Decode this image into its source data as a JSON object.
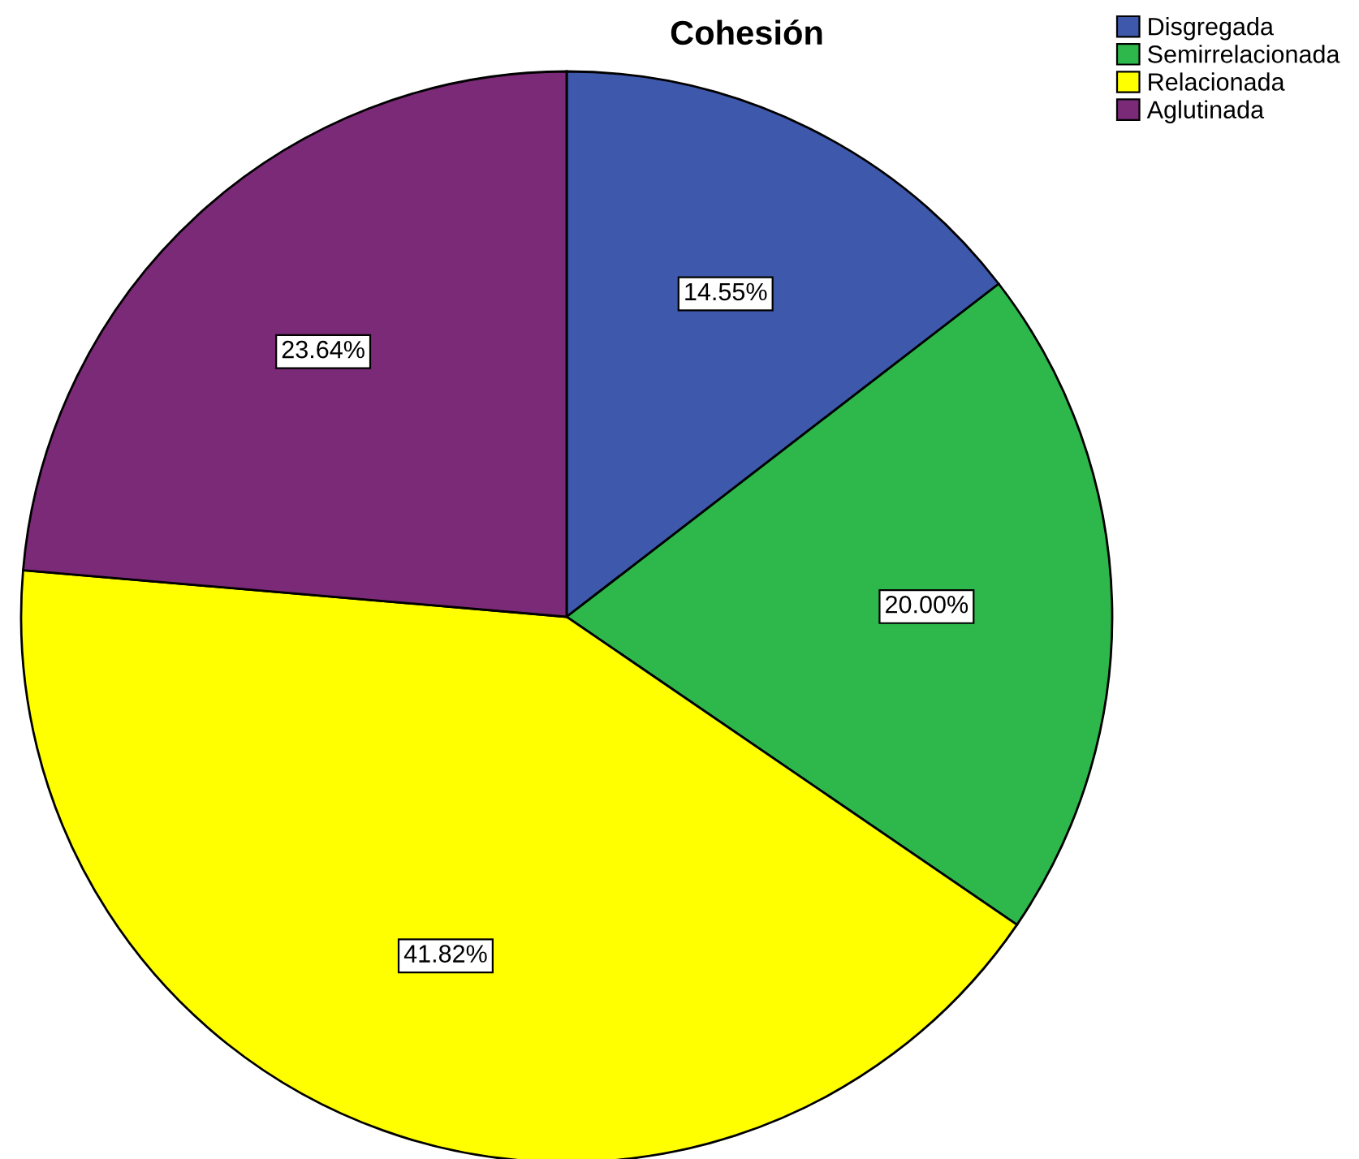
{
  "chart_data": {
    "type": "pie",
    "title": "Cohesión",
    "categories": [
      "Disgregada",
      "Semirrelacionada",
      "Relacionada",
      "Aglutinada"
    ],
    "values": [
      14.55,
      20.0,
      41.82,
      23.64
    ],
    "colors": [
      "#3e58ac",
      "#2eb84b",
      "#ffff00",
      "#7b2a78"
    ],
    "value_labels": [
      "14.55%",
      "20.00%",
      "41.82%",
      "23.64%"
    ],
    "legend": "top right"
  }
}
